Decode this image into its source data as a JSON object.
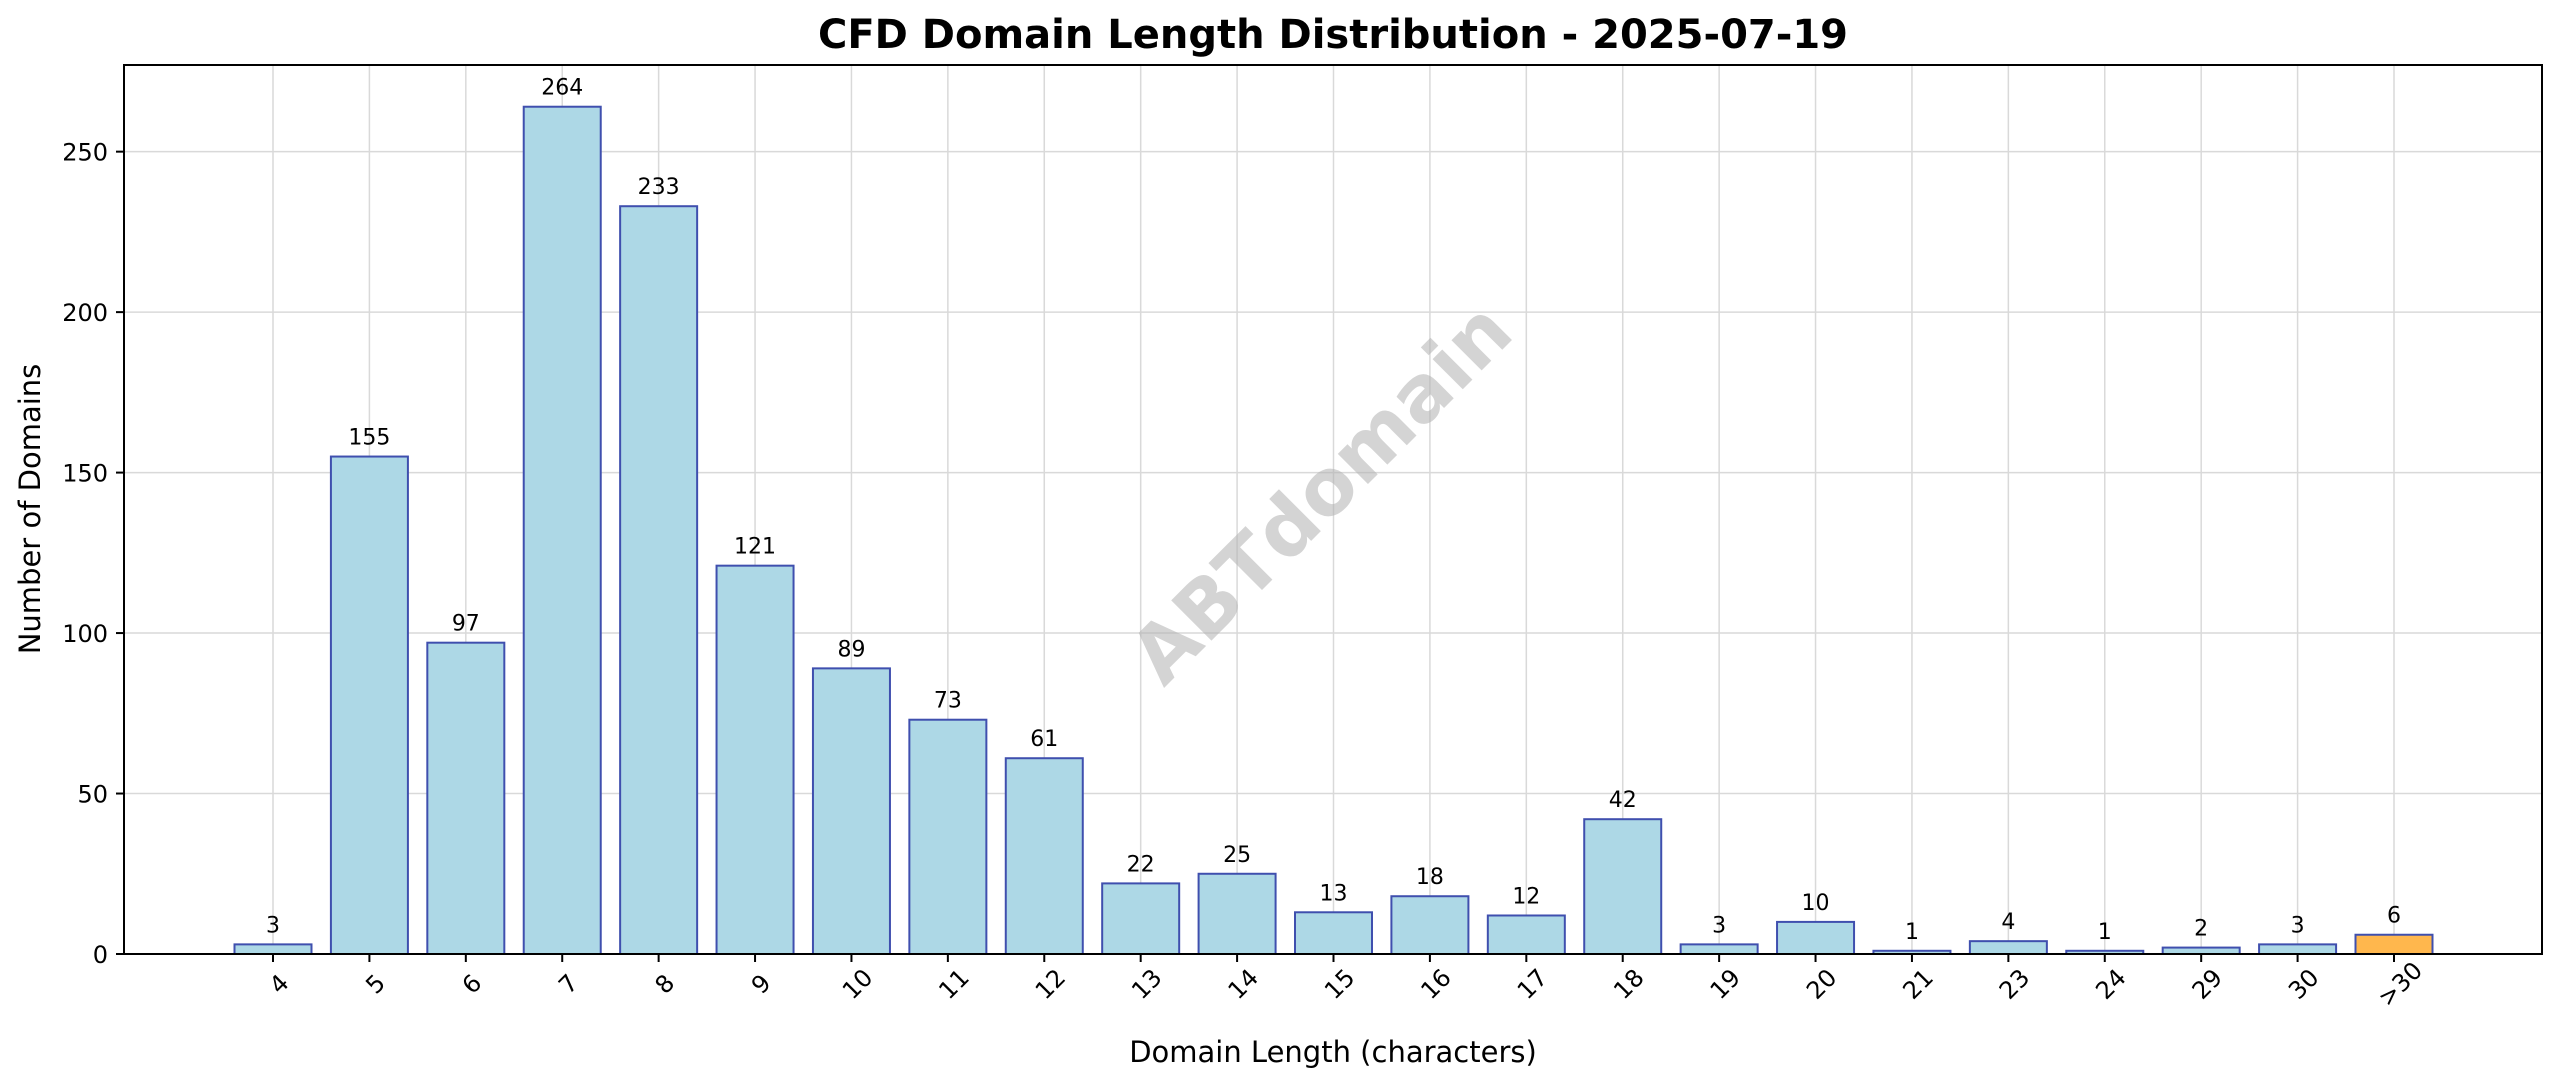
{
  "chart_data": {
    "type": "bar",
    "title": "CFD Domain Length Distribution - 2025-07-19",
    "xlabel": "Domain Length (characters)",
    "ylabel": "Number of Domains",
    "categories": [
      "4",
      "5",
      "6",
      "7",
      "8",
      "9",
      "10",
      "11",
      "12",
      "13",
      "14",
      "15",
      "16",
      "17",
      "18",
      "19",
      "20",
      "21",
      "23",
      "24",
      "29",
      "30",
      ">30"
    ],
    "values": [
      3,
      155,
      97,
      264,
      233,
      121,
      89,
      73,
      61,
      22,
      25,
      13,
      18,
      12,
      42,
      3,
      10,
      1,
      4,
      1,
      2,
      3,
      6
    ],
    "ylim": [
      0,
      277
    ],
    "yticks": [
      0,
      50,
      100,
      150,
      200,
      250
    ],
    "grid": true,
    "colors": {
      "bar": "#add8e6",
      "bar_edge": "#3f4fae",
      "highlight": "#ffb74d",
      "highlight_edge": "#3f4fae",
      "grid": "#d9d9d9",
      "axis": "#000000"
    },
    "highlight_categories": [
      ">30"
    ],
    "watermark": "ABTdomain"
  }
}
